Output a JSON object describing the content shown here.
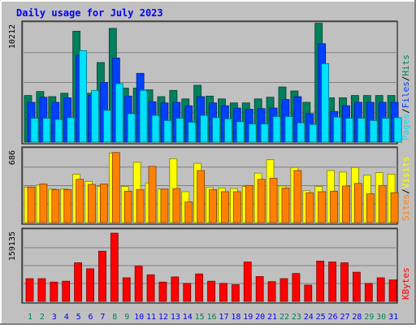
{
  "title": "Daily usage for July 2023",
  "colors": {
    "background": "#c0c0c0",
    "title": "#0000ff",
    "hits": "#00805c",
    "files": "#0040ff",
    "pages": "#00e0ff",
    "visits": "#ffff00",
    "sites": "#ff8000",
    "kbytes": "#ff0000",
    "weekend_label": "#00805c",
    "weekday_label": "#0000ff"
  },
  "chart_data": [
    {
      "type": "bar",
      "panel": "hits-files-pages",
      "y_tick_label": "10212",
      "ylim": [
        0,
        10212
      ],
      "categories": [
        "1",
        "2",
        "3",
        "4",
        "5",
        "6",
        "7",
        "8",
        "9",
        "10",
        "11",
        "12",
        "13",
        "14",
        "15",
        "16",
        "17",
        "18",
        "19",
        "20",
        "21",
        "22",
        "23",
        "24",
        "25",
        "26",
        "27",
        "28",
        "29",
        "30",
        "31"
      ],
      "legend": [
        {
          "text": "Pages",
          "color": "#00e0ff"
        },
        {
          "text": "Files",
          "color": "#0040ff"
        },
        {
          "text": "Hits",
          "color": "#00805c"
        }
      ],
      "series": [
        {
          "name": "Hits",
          "values": [
            4100,
            4450,
            4000,
            4300,
            9750,
            4300,
            7000,
            10000,
            4750,
            4750,
            4600,
            4000,
            4550,
            3800,
            5000,
            4050,
            3800,
            3450,
            3450,
            3800,
            3950,
            4850,
            4500,
            3500,
            10450,
            3900,
            3900,
            4100,
            4100,
            4100,
            4100
          ]
        },
        {
          "name": "Files",
          "values": [
            3500,
            3950,
            3500,
            3900,
            7650,
            4100,
            5250,
            7400,
            4050,
            6050,
            3550,
            3450,
            3500,
            3200,
            4000,
            3450,
            3200,
            3000,
            2900,
            2950,
            3000,
            3750,
            4000,
            2500,
            8650,
            2700,
            3200,
            3500,
            3500,
            3500,
            3500
          ]
        },
        {
          "name": "Pages",
          "values": [
            2100,
            2100,
            2000,
            2150,
            8050,
            4550,
            2800,
            5150,
            2500,
            4550,
            2350,
            1900,
            2100,
            1750,
            2350,
            2150,
            2050,
            1800,
            1600,
            1600,
            2250,
            2250,
            1700,
            1550,
            6900,
            2200,
            2100,
            2100,
            1900,
            2100,
            2150
          ]
        }
      ]
    },
    {
      "type": "bar",
      "panel": "visits-sites",
      "y_tick_label": "686",
      "ylim": [
        0,
        686
      ],
      "legend": [
        {
          "text": "Sites",
          "color": "#ff8000"
        },
        {
          "text": "Visits",
          "color": "#ffff00"
        }
      ],
      "series": [
        {
          "name": "Visits",
          "values": [
            345,
            365,
            325,
            325,
            470,
            400,
            350,
            675,
            350,
            585,
            385,
            325,
            620,
            300,
            575,
            340,
            335,
            330,
            350,
            480,
            610,
            355,
            535,
            310,
            350,
            505,
            490,
            535,
            460,
            485,
            470
          ]
        },
        {
          "name": "Sites",
          "values": [
            345,
            375,
            320,
            320,
            420,
            370,
            375,
            680,
            305,
            320,
            545,
            325,
            330,
            200,
            505,
            320,
            300,
            300,
            360,
            420,
            430,
            335,
            505,
            290,
            300,
            305,
            355,
            380,
            280,
            360,
            290
          ]
        }
      ]
    },
    {
      "type": "bar",
      "panel": "kbytes",
      "y_tick_label": "159135",
      "ylim": [
        0,
        159135
      ],
      "legend": [
        {
          "text": "KBytes",
          "color": "#ff0000"
        }
      ],
      "series": [
        {
          "name": "KBytes",
          "values": [
            53000,
            53000,
            45000,
            47000,
            90000,
            76000,
            117000,
            159000,
            55000,
            82000,
            62000,
            45000,
            57000,
            42000,
            64000,
            47000,
            42000,
            39000,
            92000,
            58000,
            46000,
            53000,
            65000,
            38000,
            94000,
            92000,
            90000,
            68000,
            42000,
            55000,
            50000
          ]
        }
      ]
    }
  ]
}
